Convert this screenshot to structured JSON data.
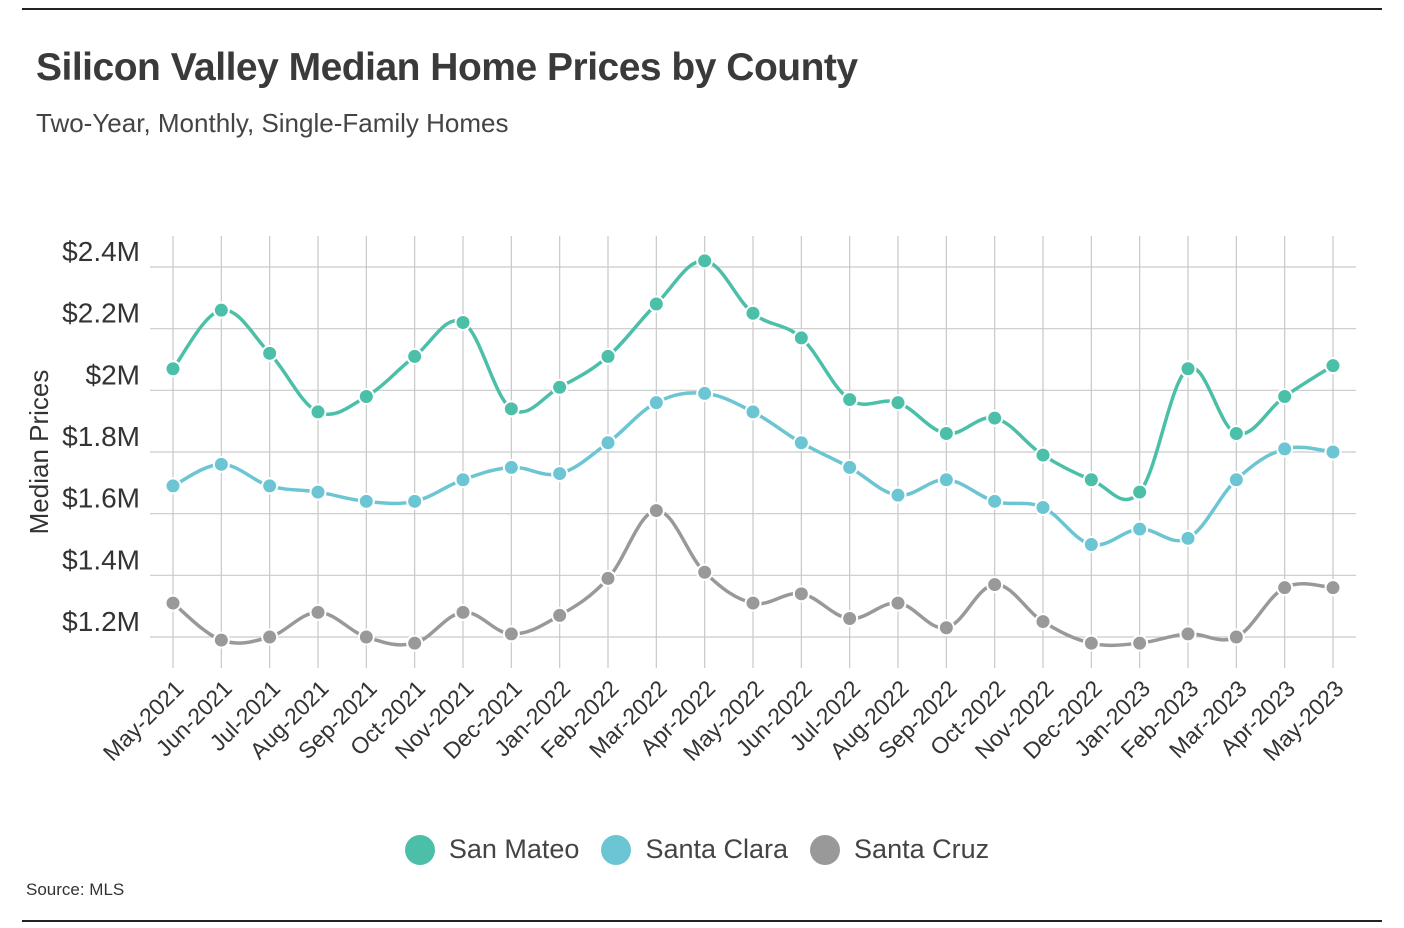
{
  "title": "Silicon Valley Median Home Prices by County",
  "subtitle": "Two-Year, Monthly, Single-Family Homes",
  "source": "Source: MLS",
  "chart_data": {
    "type": "line",
    "title": "Silicon Valley Median Home Prices by County",
    "subtitle": "Two-Year, Monthly, Single-Family Homes",
    "xlabel": "",
    "ylabel": "Median Prices",
    "categories": [
      "May-2021",
      "Jun-2021",
      "Jul-2021",
      "Aug-2021",
      "Sep-2021",
      "Oct-2021",
      "Nov-2021",
      "Dec-2021",
      "Jan-2022",
      "Feb-2022",
      "Mar-2022",
      "Apr-2022",
      "May-2022",
      "Jun-2022",
      "Jul-2022",
      "Aug-2022",
      "Sep-2022",
      "Oct-2022",
      "Nov-2022",
      "Dec-2022",
      "Jan-2023",
      "Feb-2023",
      "Mar-2023",
      "Apr-2023",
      "May-2023"
    ],
    "yticks": [
      1.2,
      1.4,
      1.6,
      1.8,
      2.0,
      2.2,
      2.4
    ],
    "ytick_labels": [
      "$1.2M",
      "$1.4M",
      "$1.6M",
      "$1.8M",
      "$2M",
      "$2.2M",
      "$2.4M"
    ],
    "ylim": [
      1.1,
      2.5
    ],
    "grid": true,
    "legend_position": "bottom-center",
    "series": [
      {
        "name": "San Mateo",
        "color": "#4bbfa8",
        "values": [
          2.07,
          2.26,
          2.12,
          1.93,
          1.98,
          2.11,
          2.22,
          1.94,
          2.01,
          2.11,
          2.28,
          2.42,
          2.25,
          2.17,
          1.97,
          1.96,
          1.86,
          1.91,
          1.79,
          1.71,
          1.67,
          2.07,
          1.86,
          1.98,
          2.08
        ]
      },
      {
        "name": "Santa Clara",
        "color": "#6cc5d3",
        "values": [
          1.69,
          1.76,
          1.69,
          1.67,
          1.64,
          1.64,
          1.71,
          1.75,
          1.73,
          1.83,
          1.96,
          1.99,
          1.93,
          1.83,
          1.75,
          1.66,
          1.71,
          1.64,
          1.62,
          1.5,
          1.55,
          1.52,
          1.71,
          1.81,
          1.8
        ]
      },
      {
        "name": "Santa Cruz",
        "color": "#999999",
        "values": [
          1.31,
          1.19,
          1.2,
          1.28,
          1.2,
          1.18,
          1.28,
          1.21,
          1.27,
          1.39,
          1.61,
          1.41,
          1.31,
          1.34,
          1.26,
          1.31,
          1.23,
          1.37,
          1.25,
          1.18,
          1.18,
          1.21,
          1.2,
          1.36,
          1.36
        ]
      }
    ]
  }
}
